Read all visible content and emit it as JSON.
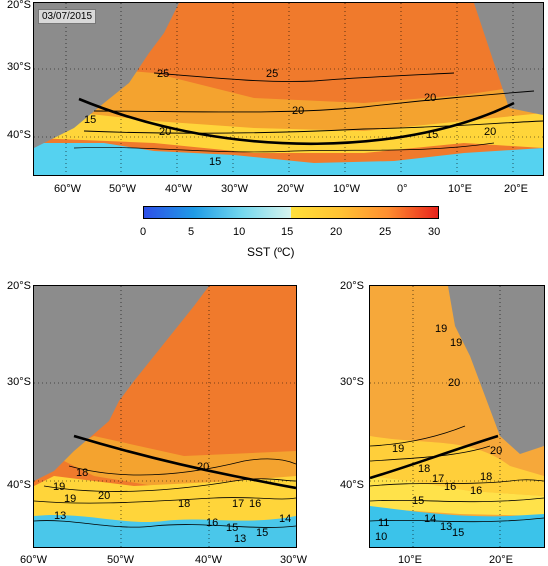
{
  "date_stamp": "03/07/2015",
  "main_map": {
    "lat_labels": [
      "20°S",
      "30°S",
      "40°S"
    ],
    "lon_labels": [
      "60°W",
      "50°W",
      "40°W",
      "30°W",
      "20°W",
      "10°W",
      "0°",
      "10°E",
      "20°E"
    ],
    "contour_labels": [
      "25",
      "25",
      "20",
      "20",
      "20",
      "20",
      "15",
      "15",
      "15"
    ]
  },
  "colorbar": {
    "title": "SST (ºC)",
    "ticks": [
      "0",
      "5",
      "10",
      "15",
      "20",
      "25",
      "30"
    ],
    "colors": [
      "#3a5cf0",
      "#23a6ef",
      "#7bdcef",
      "#c9f2ee",
      "#ffe03a",
      "#ffc233",
      "#ff9a33",
      "#ff6a2a",
      "#e8231c"
    ]
  },
  "west_map": {
    "lat_labels": [
      "20°S",
      "30°S",
      "40°S"
    ],
    "lon_labels": [
      "60°W",
      "50°W",
      "40°W",
      "30°W"
    ],
    "contour_labels": [
      "19",
      "20",
      "18",
      "19",
      "20",
      "18",
      "17",
      "16",
      "15",
      "14",
      "13",
      "13",
      "15",
      "16"
    ]
  },
  "east_map": {
    "lat_labels": [
      "20°S",
      "30°S",
      "40°S"
    ],
    "lon_labels": [
      "10°E",
      "20°E"
    ],
    "contour_labels": [
      "19",
      "19",
      "20",
      "19",
      "18",
      "17",
      "16",
      "15",
      "14",
      "13",
      "11",
      "10",
      "20",
      "18",
      "16",
      "15"
    ]
  },
  "palette": {
    "land": "#8c8c8c",
    "warm": "#f27a2c",
    "mid": "#f7b32f",
    "cool": "#ffe24a",
    "cold": "#55d2f0"
  }
}
